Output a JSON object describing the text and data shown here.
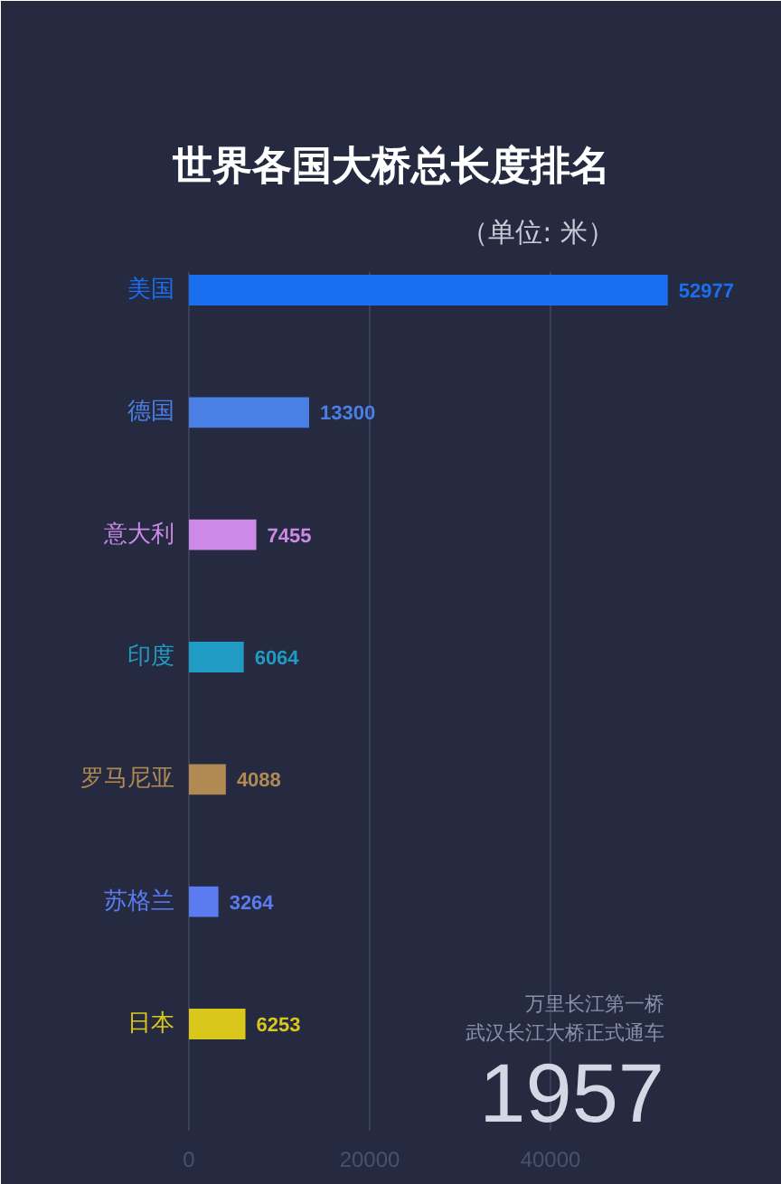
{
  "chart_data": {
    "type": "bar",
    "orientation": "horizontal",
    "title": "世界各国大桥总长度排名",
    "subtitle": "（单位: 米）",
    "categories": [
      "美国",
      "德国",
      "意大利",
      "印度",
      "罗马尼亚",
      "苏格兰",
      "日本"
    ],
    "values": [
      52977,
      13300,
      7455,
      6064,
      4088,
      3264,
      6253
    ],
    "colors": [
      "#1a6ff0",
      "#4a80e6",
      "#cc8ae6",
      "#1f9bc4",
      "#b08a52",
      "#5a7cf0",
      "#d9c71c"
    ],
    "xlim": [
      0,
      65600
    ],
    "xticks": [
      0,
      20000,
      40000
    ],
    "grid": "x",
    "data_labels": true,
    "annotations": [
      "万里长江第一桥",
      "武汉长江大桥正式通车",
      "1957"
    ]
  }
}
